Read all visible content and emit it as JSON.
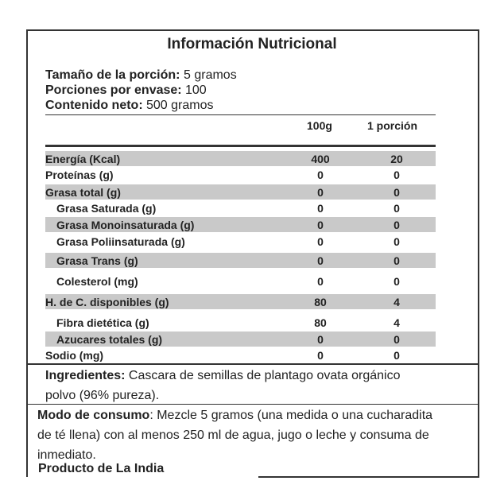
{
  "header": {
    "title": "Información Nutricional",
    "serving": [
      {
        "label": "Tamaño de la porción:",
        "value": "5 gramos"
      },
      {
        "label": "Porciones por envase:",
        "value": "100"
      },
      {
        "label": "Contenido neto:",
        "value": "500 gramos"
      }
    ]
  },
  "table": {
    "columns": [
      "100g",
      "1 porción"
    ],
    "rows": [
      {
        "name": "Energía (Kcal)",
        "values": [
          400,
          20
        ]
      },
      {
        "name": "Proteínas (g)",
        "values": [
          0,
          0
        ]
      },
      {
        "name": "Grasa total (g)",
        "values": [
          0,
          0
        ]
      },
      {
        "name": "Grasa Saturada (g)",
        "values": [
          0,
          0
        ]
      },
      {
        "name": "Grasa Monoinsaturada (g)",
        "values": [
          0,
          0
        ]
      },
      {
        "name": "Grasa Poliinsaturada (g)",
        "values": [
          0,
          0
        ]
      },
      {
        "name": "Grasa Trans (g)",
        "values": [
          0,
          0
        ]
      },
      {
        "name": "Colesterol (mg)",
        "values": [
          0,
          0
        ]
      },
      {
        "name": "H. de C. disponibles (g)",
        "values": [
          80,
          4
        ]
      },
      {
        "name": "Fibra dietética (g)",
        "values": [
          80,
          4
        ]
      },
      {
        "name": "Azucares totales (g)",
        "values": [
          0,
          0
        ]
      },
      {
        "name": "Sodio (mg)",
        "values": [
          0,
          0
        ]
      }
    ]
  },
  "ingredients": {
    "label": "Ingredientes:",
    "text": "Cascara de semillas de plantago ovata orgánico polvo (96% pureza)."
  },
  "usage": {
    "label": "Modo de consumo",
    "text": ": Mezcle 5 gramos  (una medida o una cucharadita de té llena)  con al menos  250 ml de agua, jugo o leche y consuma de inmediato."
  },
  "origin": "Producto de La India"
}
